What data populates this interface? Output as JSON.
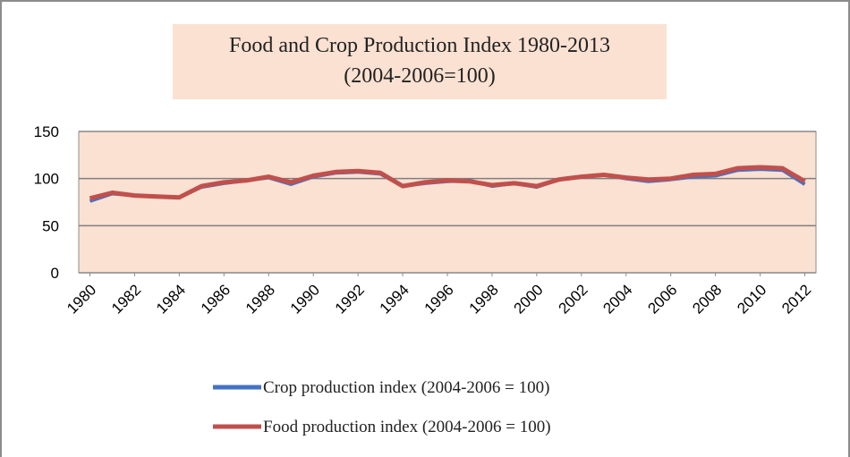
{
  "chart_data": {
    "type": "line",
    "title": "Food and Crop Production Index 1980-2013",
    "subtitle": "(2004-2006=100)",
    "x": [
      1980,
      1981,
      1982,
      1983,
      1984,
      1985,
      1986,
      1987,
      1988,
      1989,
      1990,
      1991,
      1992,
      1993,
      1994,
      1995,
      1996,
      1997,
      1998,
      1999,
      2000,
      2001,
      2002,
      2003,
      2004,
      2005,
      2006,
      2007,
      2008,
      2009,
      2010,
      2011,
      2012
    ],
    "xlim": [
      1979.5,
      2012.5
    ],
    "xticks": [
      1980,
      1982,
      1984,
      1986,
      1988,
      1990,
      1992,
      1994,
      1996,
      1998,
      2000,
      2002,
      2004,
      2006,
      2008,
      2010,
      2012
    ],
    "ylim": [
      0,
      150
    ],
    "yticks": [
      0,
      50,
      100,
      150
    ],
    "grid": true,
    "legend": "bottom",
    "series": [
      {
        "name": "Crop production index (2004-2006 = 100)",
        "color": "#4472c4",
        "values": [
          76,
          84,
          82,
          81,
          80,
          91,
          95,
          98,
          101,
          94,
          102,
          106,
          107,
          105,
          92,
          95,
          97,
          98,
          92,
          95,
          91,
          99,
          102,
          104,
          100,
          97,
          99,
          102,
          103,
          109,
          110,
          109,
          94
        ]
      },
      {
        "name": "Food production index (2004-2006 = 100)",
        "color": "#c0504d",
        "values": [
          79,
          85,
          82,
          81,
          80,
          92,
          96,
          98,
          102,
          96,
          103,
          107,
          108,
          106,
          92,
          96,
          98,
          97,
          93,
          95,
          92,
          99,
          102,
          104,
          101,
          99,
          100,
          104,
          105,
          111,
          112,
          111,
          97
        ]
      }
    ]
  }
}
